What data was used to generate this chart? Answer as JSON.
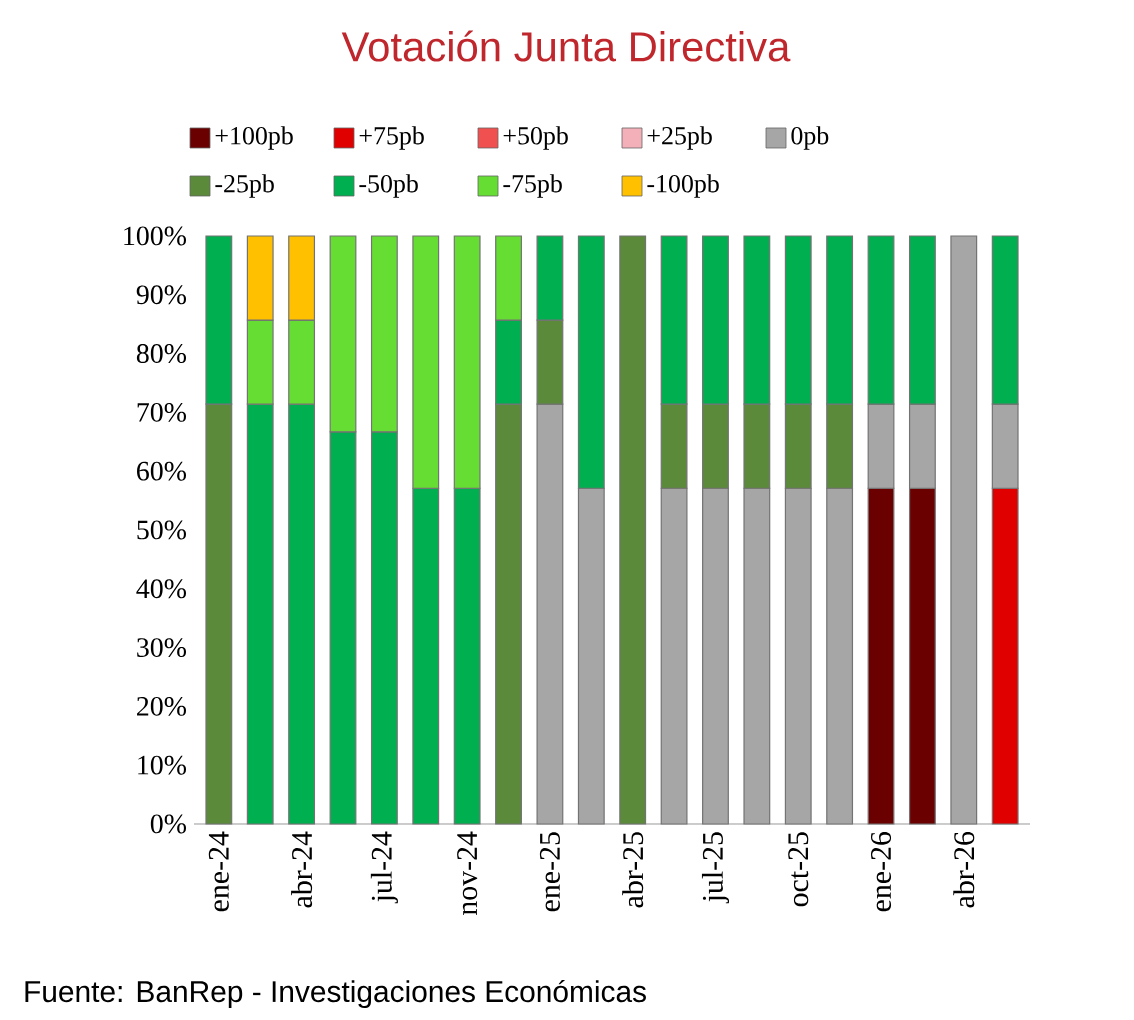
{
  "chart_data": {
    "type": "bar",
    "stacked": true,
    "title": "Votación Junta Directiva",
    "categories": [
      "ene-24",
      null,
      "abr-24",
      null,
      "jul-24",
      null,
      "nov-24",
      null,
      "ene-25",
      null,
      "abr-25",
      null,
      "jul-25",
      null,
      "oct-25",
      null,
      "ene-26",
      null,
      "abr-26",
      null
    ],
    "series": [
      {
        "name": "+100pb",
        "color": "#6b0000",
        "values": [
          null,
          null,
          null,
          null,
          null,
          null,
          null,
          null,
          null,
          null,
          null,
          null,
          null,
          null,
          null,
          null,
          57.1,
          57.1,
          null,
          null
        ]
      },
      {
        "name": "+75pb",
        "color": "#e00000",
        "values": [
          null,
          null,
          null,
          null,
          null,
          null,
          null,
          null,
          null,
          null,
          null,
          null,
          null,
          null,
          null,
          null,
          null,
          null,
          null,
          57.1
        ]
      },
      {
        "name": "+50pb",
        "color": "#f05050",
        "values": [
          null,
          null,
          null,
          null,
          null,
          null,
          null,
          null,
          null,
          null,
          null,
          null,
          null,
          null,
          null,
          null,
          null,
          null,
          null,
          null
        ]
      },
      {
        "name": "+25pb",
        "color": "#f4b0b8",
        "values": [
          null,
          null,
          null,
          null,
          null,
          null,
          null,
          null,
          null,
          null,
          null,
          null,
          null,
          null,
          null,
          null,
          null,
          null,
          null,
          null
        ]
      },
      {
        "name": "0pb",
        "color": "#a6a6a6",
        "values": [
          null,
          null,
          null,
          null,
          null,
          null,
          null,
          null,
          71.4,
          57.1,
          null,
          57.1,
          57.1,
          57.1,
          57.1,
          57.1,
          14.3,
          14.3,
          100,
          14.3
        ]
      },
      {
        "name": "-25pb",
        "color": "#5a8a3a",
        "values": [
          71.4,
          null,
          null,
          null,
          null,
          null,
          null,
          71.4,
          14.3,
          null,
          100,
          14.3,
          14.3,
          14.3,
          14.3,
          14.3,
          null,
          null,
          null,
          null
        ]
      },
      {
        "name": "-50pb",
        "color": "#00b050",
        "values": [
          28.6,
          71.4,
          71.4,
          66.7,
          66.7,
          57.1,
          57.1,
          14.3,
          14.3,
          42.9,
          null,
          28.6,
          28.6,
          28.6,
          28.6,
          28.6,
          28.6,
          28.6,
          null,
          28.6
        ]
      },
      {
        "name": "-75pb",
        "color": "#66dd33",
        "values": [
          null,
          14.3,
          14.3,
          33.3,
          33.3,
          42.9,
          42.9,
          14.3,
          null,
          null,
          null,
          null,
          null,
          null,
          null,
          null,
          null,
          null,
          null,
          null
        ]
      },
      {
        "name": "-100pb",
        "color": "#ffc000",
        "values": [
          null,
          14.3,
          14.3,
          null,
          null,
          null,
          null,
          null,
          null,
          null,
          null,
          null,
          null,
          null,
          null,
          null,
          null,
          null,
          null,
          null
        ]
      }
    ],
    "ylim": [
      0,
      100
    ],
    "yticks": [
      {
        "value": 0,
        "label": "0%"
      },
      {
        "value": 10,
        "label": "10%"
      },
      {
        "value": 20,
        "label": "20%"
      },
      {
        "value": 30,
        "label": "30%"
      },
      {
        "value": 40,
        "label": "40%"
      },
      {
        "value": 50,
        "label": "50%"
      },
      {
        "value": 60,
        "label": "60%"
      },
      {
        "value": 70,
        "label": "70%"
      },
      {
        "value": 80,
        "label": "80%"
      },
      {
        "value": 90,
        "label": "90%"
      },
      {
        "value": 100,
        "label": "100%"
      }
    ],
    "grid": false,
    "legend": "top",
    "annotations": [
      "Fuente: BanRep - Investigaciones Económicas"
    ]
  }
}
